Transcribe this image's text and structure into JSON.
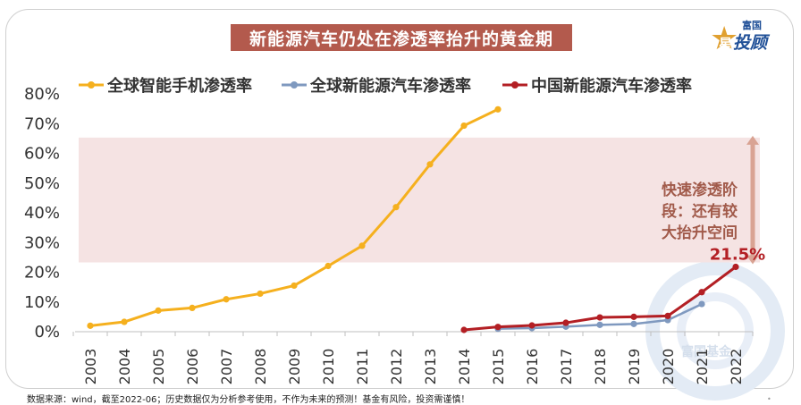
{
  "title": "新能源汽车仍处在渗透率抬升的黄金期",
  "logo": {
    "small": "富国",
    "big": "投顾",
    "star": "星"
  },
  "footnote": "数据来源：wind，截至2022-06；历史数据仅为分析参考使用，不作为未来的预测！基金有风险，投资需谨慎！",
  "watermark": "富国基金",
  "annotation": {
    "lines": [
      "快速渗透阶",
      "段：还有较",
      "大抬升空间"
    ],
    "value_label": "21.5%"
  },
  "colors": {
    "smartphone": "#f5b01e",
    "global_ev": "#7f99bf",
    "china_ev": "#b31f24",
    "band": "#f5e3e3",
    "arrow": "#d9a393",
    "annotation": "#a15a4a",
    "title_bg": "#b35a4d"
  },
  "chart_data": {
    "type": "line",
    "x": [
      "2003",
      "2004",
      "2005",
      "2006",
      "2007",
      "2008",
      "2009",
      "2010",
      "2011",
      "2012",
      "2013",
      "2014",
      "2015",
      "2016",
      "2017",
      "2018",
      "2019",
      "2020",
      "2021",
      "2022"
    ],
    "series": [
      {
        "name": "全球智能手机渗透率",
        "values": [
          1.7,
          3.0,
          6.8,
          7.7,
          10.6,
          12.5,
          15.2,
          21.8,
          28.6,
          41.6,
          56.0,
          69.0,
          74.5,
          null,
          null,
          null,
          null,
          null,
          null,
          null
        ]
      },
      {
        "name": "全球新能源汽车渗透率",
        "values": [
          null,
          null,
          null,
          null,
          null,
          null,
          null,
          null,
          null,
          null,
          null,
          null,
          0.7,
          0.9,
          1.4,
          2.0,
          2.3,
          3.6,
          9.0,
          null
        ]
      },
      {
        "name": "中国新能源汽车渗透率",
        "values": [
          null,
          null,
          null,
          null,
          null,
          null,
          null,
          null,
          null,
          null,
          null,
          0.3,
          1.3,
          1.8,
          2.7,
          4.5,
          4.7,
          5.0,
          13.0,
          21.5
        ]
      }
    ],
    "yticks": [
      "0%",
      "10%",
      "20%",
      "30%",
      "40%",
      "50%",
      "60%",
      "70%",
      "80%"
    ],
    "ylim": [
      0,
      80
    ],
    "highlight_band": [
      23,
      65
    ],
    "legend_position": "top",
    "grid": false
  }
}
